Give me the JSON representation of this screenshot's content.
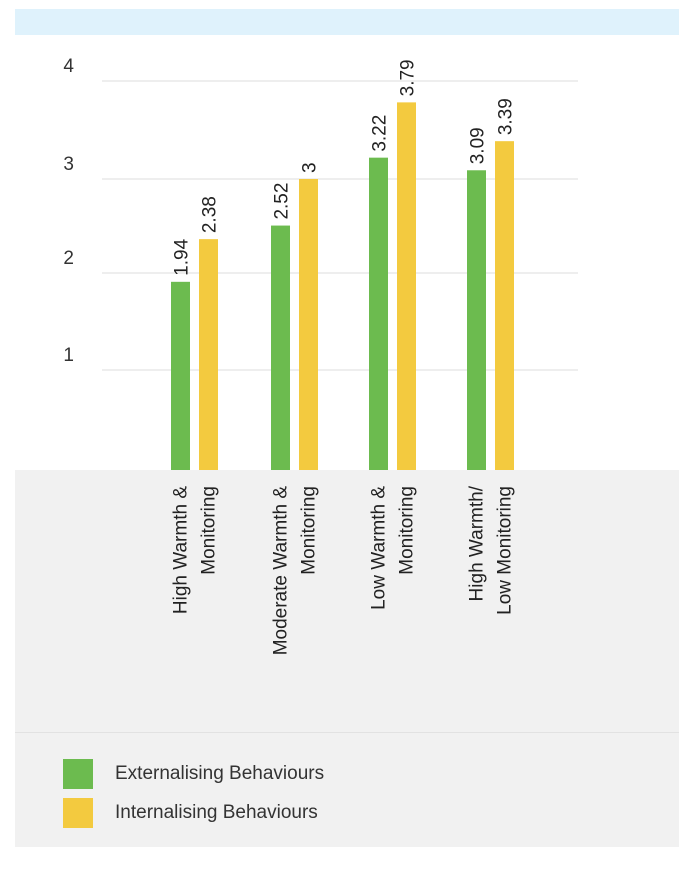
{
  "colors": {
    "externalising": "#6cbb4f",
    "internalising": "#f3ca3f",
    "top_band": "#dff2fc",
    "lower_panel": "#f1f1f1",
    "gridline": "#dcdcdc"
  },
  "chart_data": {
    "type": "bar",
    "title": "",
    "xlabel": "",
    "ylabel": "",
    "ylim": [
      0,
      4
    ],
    "yticks": [
      1,
      2,
      3,
      4
    ],
    "grid": true,
    "legend_position": "bottom",
    "categories": [
      {
        "lines": [
          "High Warmth &",
          "Monitoring"
        ]
      },
      {
        "lines": [
          "Moderate Warmth &",
          "Monitoring"
        ]
      },
      {
        "lines": [
          "Low Warmth &",
          "Monitoring"
        ]
      },
      {
        "lines": [
          "High Warmth/",
          "Low Monitoring"
        ]
      }
    ],
    "series": [
      {
        "name": "Externalising Behaviours",
        "color": "#6cbb4f",
        "values": [
          1.94,
          2.52,
          3.22,
          3.09
        ],
        "labels": [
          "1.94",
          "2.52",
          "3.22",
          "3.09"
        ]
      },
      {
        "name": "Internalising Behaviours",
        "color": "#f3ca3f",
        "values": [
          2.38,
          3,
          3.79,
          3.39
        ],
        "labels": [
          "2.38",
          "3",
          "3.79",
          "3.39"
        ]
      }
    ]
  }
}
